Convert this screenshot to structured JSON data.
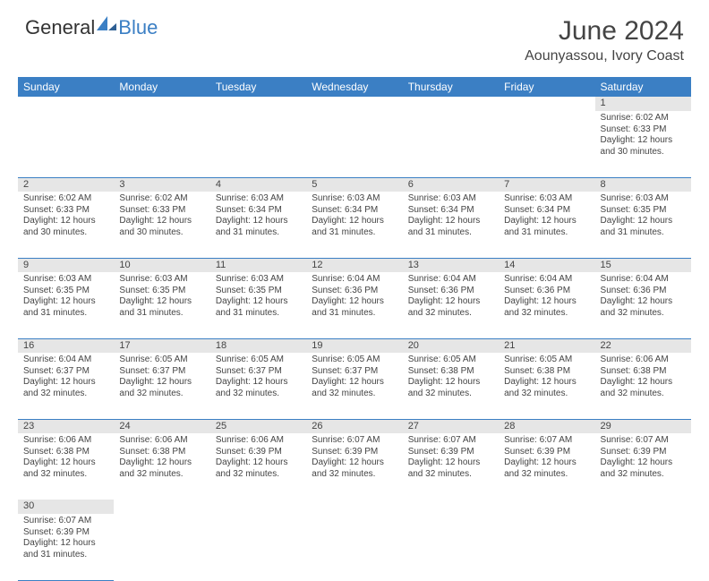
{
  "brand": {
    "part1": "General",
    "part2": "Blue",
    "text_color": "#333333",
    "accent_color": "#3b7fc4"
  },
  "title": "June 2024",
  "location": "Aounyassou, Ivory Coast",
  "colors": {
    "header_bg": "#3b7fc4",
    "header_text": "#ffffff",
    "daynum_bg": "#e6e6e6",
    "cell_text": "#444444",
    "rule": "#3b7fc4",
    "page_bg": "#ffffff"
  },
  "typography": {
    "month_title_size_pt": 22,
    "location_size_pt": 12,
    "dayheader_size_pt": 9,
    "daynum_size_pt": 8,
    "cell_size_pt": 7.5
  },
  "day_headers": [
    "Sunday",
    "Monday",
    "Tuesday",
    "Wednesday",
    "Thursday",
    "Friday",
    "Saturday"
  ],
  "weeks": [
    [
      null,
      null,
      null,
      null,
      null,
      null,
      {
        "n": "1",
        "sr": "Sunrise: 6:02 AM",
        "ss": "Sunset: 6:33 PM",
        "d1": "Daylight: 12 hours",
        "d2": "and 30 minutes."
      }
    ],
    [
      {
        "n": "2",
        "sr": "Sunrise: 6:02 AM",
        "ss": "Sunset: 6:33 PM",
        "d1": "Daylight: 12 hours",
        "d2": "and 30 minutes."
      },
      {
        "n": "3",
        "sr": "Sunrise: 6:02 AM",
        "ss": "Sunset: 6:33 PM",
        "d1": "Daylight: 12 hours",
        "d2": "and 30 minutes."
      },
      {
        "n": "4",
        "sr": "Sunrise: 6:03 AM",
        "ss": "Sunset: 6:34 PM",
        "d1": "Daylight: 12 hours",
        "d2": "and 31 minutes."
      },
      {
        "n": "5",
        "sr": "Sunrise: 6:03 AM",
        "ss": "Sunset: 6:34 PM",
        "d1": "Daylight: 12 hours",
        "d2": "and 31 minutes."
      },
      {
        "n": "6",
        "sr": "Sunrise: 6:03 AM",
        "ss": "Sunset: 6:34 PM",
        "d1": "Daylight: 12 hours",
        "d2": "and 31 minutes."
      },
      {
        "n": "7",
        "sr": "Sunrise: 6:03 AM",
        "ss": "Sunset: 6:34 PM",
        "d1": "Daylight: 12 hours",
        "d2": "and 31 minutes."
      },
      {
        "n": "8",
        "sr": "Sunrise: 6:03 AM",
        "ss": "Sunset: 6:35 PM",
        "d1": "Daylight: 12 hours",
        "d2": "and 31 minutes."
      }
    ],
    [
      {
        "n": "9",
        "sr": "Sunrise: 6:03 AM",
        "ss": "Sunset: 6:35 PM",
        "d1": "Daylight: 12 hours",
        "d2": "and 31 minutes."
      },
      {
        "n": "10",
        "sr": "Sunrise: 6:03 AM",
        "ss": "Sunset: 6:35 PM",
        "d1": "Daylight: 12 hours",
        "d2": "and 31 minutes."
      },
      {
        "n": "11",
        "sr": "Sunrise: 6:03 AM",
        "ss": "Sunset: 6:35 PM",
        "d1": "Daylight: 12 hours",
        "d2": "and 31 minutes."
      },
      {
        "n": "12",
        "sr": "Sunrise: 6:04 AM",
        "ss": "Sunset: 6:36 PM",
        "d1": "Daylight: 12 hours",
        "d2": "and 31 minutes."
      },
      {
        "n": "13",
        "sr": "Sunrise: 6:04 AM",
        "ss": "Sunset: 6:36 PM",
        "d1": "Daylight: 12 hours",
        "d2": "and 32 minutes."
      },
      {
        "n": "14",
        "sr": "Sunrise: 6:04 AM",
        "ss": "Sunset: 6:36 PM",
        "d1": "Daylight: 12 hours",
        "d2": "and 32 minutes."
      },
      {
        "n": "15",
        "sr": "Sunrise: 6:04 AM",
        "ss": "Sunset: 6:36 PM",
        "d1": "Daylight: 12 hours",
        "d2": "and 32 minutes."
      }
    ],
    [
      {
        "n": "16",
        "sr": "Sunrise: 6:04 AM",
        "ss": "Sunset: 6:37 PM",
        "d1": "Daylight: 12 hours",
        "d2": "and 32 minutes."
      },
      {
        "n": "17",
        "sr": "Sunrise: 6:05 AM",
        "ss": "Sunset: 6:37 PM",
        "d1": "Daylight: 12 hours",
        "d2": "and 32 minutes."
      },
      {
        "n": "18",
        "sr": "Sunrise: 6:05 AM",
        "ss": "Sunset: 6:37 PM",
        "d1": "Daylight: 12 hours",
        "d2": "and 32 minutes."
      },
      {
        "n": "19",
        "sr": "Sunrise: 6:05 AM",
        "ss": "Sunset: 6:37 PM",
        "d1": "Daylight: 12 hours",
        "d2": "and 32 minutes."
      },
      {
        "n": "20",
        "sr": "Sunrise: 6:05 AM",
        "ss": "Sunset: 6:38 PM",
        "d1": "Daylight: 12 hours",
        "d2": "and 32 minutes."
      },
      {
        "n": "21",
        "sr": "Sunrise: 6:05 AM",
        "ss": "Sunset: 6:38 PM",
        "d1": "Daylight: 12 hours",
        "d2": "and 32 minutes."
      },
      {
        "n": "22",
        "sr": "Sunrise: 6:06 AM",
        "ss": "Sunset: 6:38 PM",
        "d1": "Daylight: 12 hours",
        "d2": "and 32 minutes."
      }
    ],
    [
      {
        "n": "23",
        "sr": "Sunrise: 6:06 AM",
        "ss": "Sunset: 6:38 PM",
        "d1": "Daylight: 12 hours",
        "d2": "and 32 minutes."
      },
      {
        "n": "24",
        "sr": "Sunrise: 6:06 AM",
        "ss": "Sunset: 6:38 PM",
        "d1": "Daylight: 12 hours",
        "d2": "and 32 minutes."
      },
      {
        "n": "25",
        "sr": "Sunrise: 6:06 AM",
        "ss": "Sunset: 6:39 PM",
        "d1": "Daylight: 12 hours",
        "d2": "and 32 minutes."
      },
      {
        "n": "26",
        "sr": "Sunrise: 6:07 AM",
        "ss": "Sunset: 6:39 PM",
        "d1": "Daylight: 12 hours",
        "d2": "and 32 minutes."
      },
      {
        "n": "27",
        "sr": "Sunrise: 6:07 AM",
        "ss": "Sunset: 6:39 PM",
        "d1": "Daylight: 12 hours",
        "d2": "and 32 minutes."
      },
      {
        "n": "28",
        "sr": "Sunrise: 6:07 AM",
        "ss": "Sunset: 6:39 PM",
        "d1": "Daylight: 12 hours",
        "d2": "and 32 minutes."
      },
      {
        "n": "29",
        "sr": "Sunrise: 6:07 AM",
        "ss": "Sunset: 6:39 PM",
        "d1": "Daylight: 12 hours",
        "d2": "and 32 minutes."
      }
    ],
    [
      {
        "n": "30",
        "sr": "Sunrise: 6:07 AM",
        "ss": "Sunset: 6:39 PM",
        "d1": "Daylight: 12 hours",
        "d2": "and 31 minutes."
      },
      null,
      null,
      null,
      null,
      null,
      null
    ]
  ]
}
